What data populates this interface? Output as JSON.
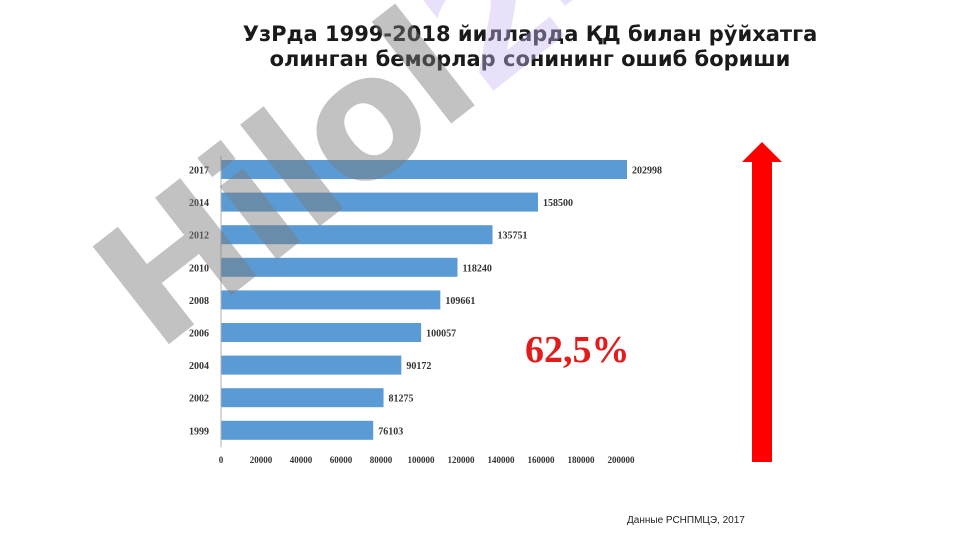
{
  "title": {
    "line1": "УзРда 1999-2018 йилларда ҚД билан рўйхатга",
    "line2": "олинган беморлар сонининг ошиб бориши"
  },
  "annotation": "62,5%",
  "footnote": "Данные РСНПМЦЭ, 2017",
  "watermark": {
    "main": "Hilol",
    "accent": "24"
  },
  "colors": {
    "bar": "#5b9bd5",
    "arrow": "#ff0000",
    "annotation": "#e31b1b"
  },
  "chart_data": {
    "type": "bar",
    "orientation": "horizontal",
    "categories": [
      "2017",
      "2014",
      "2012",
      "2010",
      "2008",
      "2006",
      "2004",
      "2002",
      "1999"
    ],
    "values": [
      202998,
      158500,
      135751,
      118240,
      109661,
      100057,
      90172,
      81275,
      76103
    ],
    "data_labels": [
      "202998",
      "158500",
      "135751",
      "118240",
      "109661",
      "100057",
      "90172",
      "81275",
      "76103"
    ],
    "xlim": [
      0,
      200000
    ],
    "xticks": [
      0,
      20000,
      40000,
      60000,
      80000,
      100000,
      120000,
      140000,
      160000,
      180000,
      200000
    ],
    "xtick_labels": [
      "0",
      "20000",
      "40000",
      "60000",
      "80000",
      "100000",
      "120000",
      "140000",
      "160000",
      "180000",
      "200000"
    ],
    "grid": false,
    "legend": "none"
  }
}
